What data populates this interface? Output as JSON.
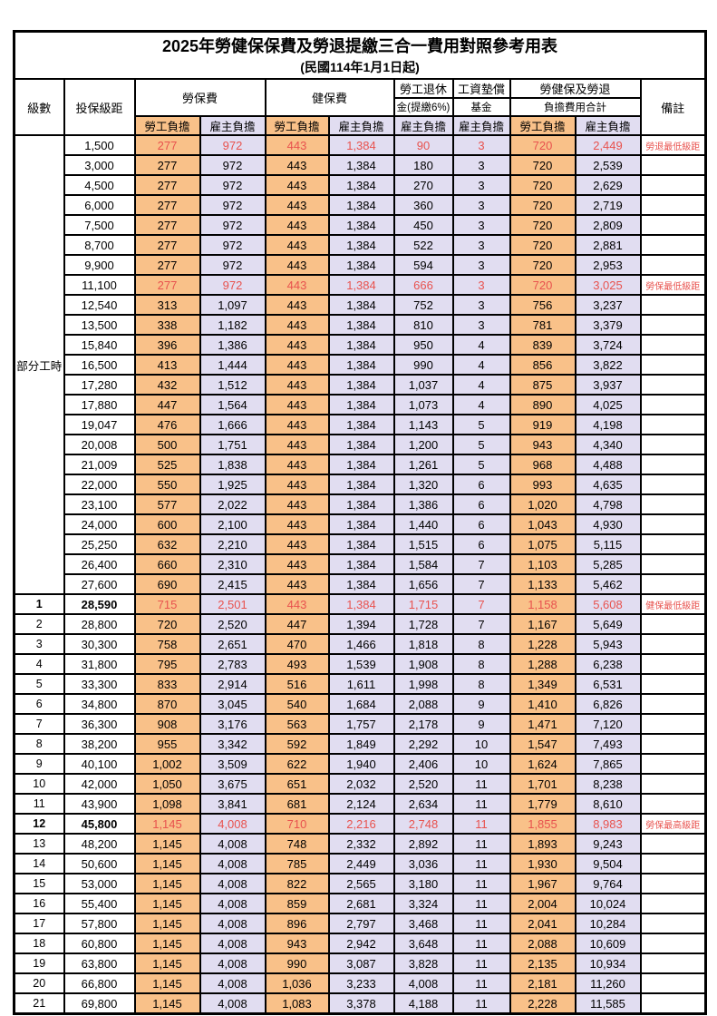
{
  "title": "2025年勞健保保費及勞退提繳三合一費用對照參考用表",
  "subtitle": "(民國114年1月1日起)",
  "header": {
    "grade": "級數",
    "bracket": "投保級距",
    "labor_insurance": "勞保費",
    "health_insurance": "健保費",
    "pension_line1": "勞工退休",
    "pension_line2": "金(提繳6%)",
    "wage_fund_line1": "工資墊償",
    "wage_fund_line2": "基金",
    "total_line1": "勞健保及勞退",
    "total_line2": "負擔費用合計",
    "note": "備註",
    "employee_burden": "勞工負擔",
    "employer_burden": "雇主負擔"
  },
  "part_time": {
    "label": "部分工時",
    "span": 23
  },
  "colors": {
    "employee_bg": "#f9c189",
    "employer_bg": "#e1ddf1",
    "highlight_text": "#e8524e",
    "note_text": "#e8524e"
  },
  "rows": [
    {
      "grade": "",
      "bracket": "1,500",
      "values": [
        "277",
        "972",
        "443",
        "1,384",
        "90",
        "3",
        "720",
        "2,449"
      ],
      "note": "勞退最低級距",
      "red": true,
      "bold": false
    },
    {
      "grade": "",
      "bracket": "3,000",
      "values": [
        "277",
        "972",
        "443",
        "1,384",
        "180",
        "3",
        "720",
        "2,539"
      ],
      "note": "",
      "red": false,
      "bold": false
    },
    {
      "grade": "",
      "bracket": "4,500",
      "values": [
        "277",
        "972",
        "443",
        "1,384",
        "270",
        "3",
        "720",
        "2,629"
      ],
      "note": "",
      "red": false,
      "bold": false
    },
    {
      "grade": "",
      "bracket": "6,000",
      "values": [
        "277",
        "972",
        "443",
        "1,384",
        "360",
        "3",
        "720",
        "2,719"
      ],
      "note": "",
      "red": false,
      "bold": false
    },
    {
      "grade": "",
      "bracket": "7,500",
      "values": [
        "277",
        "972",
        "443",
        "1,384",
        "450",
        "3",
        "720",
        "2,809"
      ],
      "note": "",
      "red": false,
      "bold": false
    },
    {
      "grade": "",
      "bracket": "8,700",
      "values": [
        "277",
        "972",
        "443",
        "1,384",
        "522",
        "3",
        "720",
        "2,881"
      ],
      "note": "",
      "red": false,
      "bold": false
    },
    {
      "grade": "",
      "bracket": "9,900",
      "values": [
        "277",
        "972",
        "443",
        "1,384",
        "594",
        "3",
        "720",
        "2,953"
      ],
      "note": "",
      "red": false,
      "bold": false
    },
    {
      "grade": "",
      "bracket": "11,100",
      "values": [
        "277",
        "972",
        "443",
        "1,384",
        "666",
        "3",
        "720",
        "3,025"
      ],
      "note": "勞保最低級距",
      "red": true,
      "bold": false
    },
    {
      "grade": "",
      "bracket": "12,540",
      "values": [
        "313",
        "1,097",
        "443",
        "1,384",
        "752",
        "3",
        "756",
        "3,237"
      ],
      "note": "",
      "red": false,
      "bold": false
    },
    {
      "grade": "",
      "bracket": "13,500",
      "values": [
        "338",
        "1,182",
        "443",
        "1,384",
        "810",
        "3",
        "781",
        "3,379"
      ],
      "note": "",
      "red": false,
      "bold": false
    },
    {
      "grade": "",
      "bracket": "15,840",
      "values": [
        "396",
        "1,386",
        "443",
        "1,384",
        "950",
        "4",
        "839",
        "3,724"
      ],
      "note": "",
      "red": false,
      "bold": false
    },
    {
      "grade": "",
      "bracket": "16,500",
      "values": [
        "413",
        "1,444",
        "443",
        "1,384",
        "990",
        "4",
        "856",
        "3,822"
      ],
      "note": "",
      "red": false,
      "bold": false
    },
    {
      "grade": "",
      "bracket": "17,280",
      "values": [
        "432",
        "1,512",
        "443",
        "1,384",
        "1,037",
        "4",
        "875",
        "3,937"
      ],
      "note": "",
      "red": false,
      "bold": false
    },
    {
      "grade": "",
      "bracket": "17,880",
      "values": [
        "447",
        "1,564",
        "443",
        "1,384",
        "1,073",
        "4",
        "890",
        "4,025"
      ],
      "note": "",
      "red": false,
      "bold": false
    },
    {
      "grade": "",
      "bracket": "19,047",
      "values": [
        "476",
        "1,666",
        "443",
        "1,384",
        "1,143",
        "5",
        "919",
        "4,198"
      ],
      "note": "",
      "red": false,
      "bold": false
    },
    {
      "grade": "",
      "bracket": "20,008",
      "values": [
        "500",
        "1,751",
        "443",
        "1,384",
        "1,200",
        "5",
        "943",
        "4,340"
      ],
      "note": "",
      "red": false,
      "bold": false
    },
    {
      "grade": "",
      "bracket": "21,009",
      "values": [
        "525",
        "1,838",
        "443",
        "1,384",
        "1,261",
        "5",
        "968",
        "4,488"
      ],
      "note": "",
      "red": false,
      "bold": false
    },
    {
      "grade": "",
      "bracket": "22,000",
      "values": [
        "550",
        "1,925",
        "443",
        "1,384",
        "1,320",
        "6",
        "993",
        "4,635"
      ],
      "note": "",
      "red": false,
      "bold": false
    },
    {
      "grade": "",
      "bracket": "23,100",
      "values": [
        "577",
        "2,022",
        "443",
        "1,384",
        "1,386",
        "6",
        "1,020",
        "4,798"
      ],
      "note": "",
      "red": false,
      "bold": false
    },
    {
      "grade": "",
      "bracket": "24,000",
      "values": [
        "600",
        "2,100",
        "443",
        "1,384",
        "1,440",
        "6",
        "1,043",
        "4,930"
      ],
      "note": "",
      "red": false,
      "bold": false
    },
    {
      "grade": "",
      "bracket": "25,250",
      "values": [
        "632",
        "2,210",
        "443",
        "1,384",
        "1,515",
        "6",
        "1,075",
        "5,115"
      ],
      "note": "",
      "red": false,
      "bold": false
    },
    {
      "grade": "",
      "bracket": "26,400",
      "values": [
        "660",
        "2,310",
        "443",
        "1,384",
        "1,584",
        "7",
        "1,103",
        "5,285"
      ],
      "note": "",
      "red": false,
      "bold": false
    },
    {
      "grade": "",
      "bracket": "27,600",
      "values": [
        "690",
        "2,415",
        "443",
        "1,384",
        "1,656",
        "7",
        "1,133",
        "5,462"
      ],
      "note": "",
      "red": false,
      "bold": false
    },
    {
      "grade": "1",
      "bracket": "28,590",
      "values": [
        "715",
        "2,501",
        "443",
        "1,384",
        "1,715",
        "7",
        "1,158",
        "5,608"
      ],
      "note": "健保最低級距",
      "red": true,
      "bold": true
    },
    {
      "grade": "2",
      "bracket": "28,800",
      "values": [
        "720",
        "2,520",
        "447",
        "1,394",
        "1,728",
        "7",
        "1,167",
        "5,649"
      ],
      "note": "",
      "red": false,
      "bold": false
    },
    {
      "grade": "3",
      "bracket": "30,300",
      "values": [
        "758",
        "2,651",
        "470",
        "1,466",
        "1,818",
        "8",
        "1,228",
        "5,943"
      ],
      "note": "",
      "red": false,
      "bold": false
    },
    {
      "grade": "4",
      "bracket": "31,800",
      "values": [
        "795",
        "2,783",
        "493",
        "1,539",
        "1,908",
        "8",
        "1,288",
        "6,238"
      ],
      "note": "",
      "red": false,
      "bold": false
    },
    {
      "grade": "5",
      "bracket": "33,300",
      "values": [
        "833",
        "2,914",
        "516",
        "1,611",
        "1,998",
        "8",
        "1,349",
        "6,531"
      ],
      "note": "",
      "red": false,
      "bold": false
    },
    {
      "grade": "6",
      "bracket": "34,800",
      "values": [
        "870",
        "3,045",
        "540",
        "1,684",
        "2,088",
        "9",
        "1,410",
        "6,826"
      ],
      "note": "",
      "red": false,
      "bold": false
    },
    {
      "grade": "7",
      "bracket": "36,300",
      "values": [
        "908",
        "3,176",
        "563",
        "1,757",
        "2,178",
        "9",
        "1,471",
        "7,120"
      ],
      "note": "",
      "red": false,
      "bold": false
    },
    {
      "grade": "8",
      "bracket": "38,200",
      "values": [
        "955",
        "3,342",
        "592",
        "1,849",
        "2,292",
        "10",
        "1,547",
        "7,493"
      ],
      "note": "",
      "red": false,
      "bold": false
    },
    {
      "grade": "9",
      "bracket": "40,100",
      "values": [
        "1,002",
        "3,509",
        "622",
        "1,940",
        "2,406",
        "10",
        "1,624",
        "7,865"
      ],
      "note": "",
      "red": false,
      "bold": false
    },
    {
      "grade": "10",
      "bracket": "42,000",
      "values": [
        "1,050",
        "3,675",
        "651",
        "2,032",
        "2,520",
        "11",
        "1,701",
        "8,238"
      ],
      "note": "",
      "red": false,
      "bold": false
    },
    {
      "grade": "11",
      "bracket": "43,900",
      "values": [
        "1,098",
        "3,841",
        "681",
        "2,124",
        "2,634",
        "11",
        "1,779",
        "8,610"
      ],
      "note": "",
      "red": false,
      "bold": false
    },
    {
      "grade": "12",
      "bracket": "45,800",
      "values": [
        "1,145",
        "4,008",
        "710",
        "2,216",
        "2,748",
        "11",
        "1,855",
        "8,983"
      ],
      "note": "勞保最高級距",
      "red": true,
      "bold": true
    },
    {
      "grade": "13",
      "bracket": "48,200",
      "values": [
        "1,145",
        "4,008",
        "748",
        "2,332",
        "2,892",
        "11",
        "1,893",
        "9,243"
      ],
      "note": "",
      "red": false,
      "bold": false
    },
    {
      "grade": "14",
      "bracket": "50,600",
      "values": [
        "1,145",
        "4,008",
        "785",
        "2,449",
        "3,036",
        "11",
        "1,930",
        "9,504"
      ],
      "note": "",
      "red": false,
      "bold": false
    },
    {
      "grade": "15",
      "bracket": "53,000",
      "values": [
        "1,145",
        "4,008",
        "822",
        "2,565",
        "3,180",
        "11",
        "1,967",
        "9,764"
      ],
      "note": "",
      "red": false,
      "bold": false
    },
    {
      "grade": "16",
      "bracket": "55,400",
      "values": [
        "1,145",
        "4,008",
        "859",
        "2,681",
        "3,324",
        "11",
        "2,004",
        "10,024"
      ],
      "note": "",
      "red": false,
      "bold": false
    },
    {
      "grade": "17",
      "bracket": "57,800",
      "values": [
        "1,145",
        "4,008",
        "896",
        "2,797",
        "3,468",
        "11",
        "2,041",
        "10,284"
      ],
      "note": "",
      "red": false,
      "bold": false
    },
    {
      "grade": "18",
      "bracket": "60,800",
      "values": [
        "1,145",
        "4,008",
        "943",
        "2,942",
        "3,648",
        "11",
        "2,088",
        "10,609"
      ],
      "note": "",
      "red": false,
      "bold": false
    },
    {
      "grade": "19",
      "bracket": "63,800",
      "values": [
        "1,145",
        "4,008",
        "990",
        "3,087",
        "3,828",
        "11",
        "2,135",
        "10,934"
      ],
      "note": "",
      "red": false,
      "bold": false
    },
    {
      "grade": "20",
      "bracket": "66,800",
      "values": [
        "1,145",
        "4,008",
        "1,036",
        "3,233",
        "4,008",
        "11",
        "2,181",
        "11,260"
      ],
      "note": "",
      "red": false,
      "bold": false
    },
    {
      "grade": "21",
      "bracket": "69,800",
      "values": [
        "1,145",
        "4,008",
        "1,083",
        "3,378",
        "4,188",
        "11",
        "2,228",
        "11,585"
      ],
      "note": "",
      "red": false,
      "bold": false
    }
  ]
}
